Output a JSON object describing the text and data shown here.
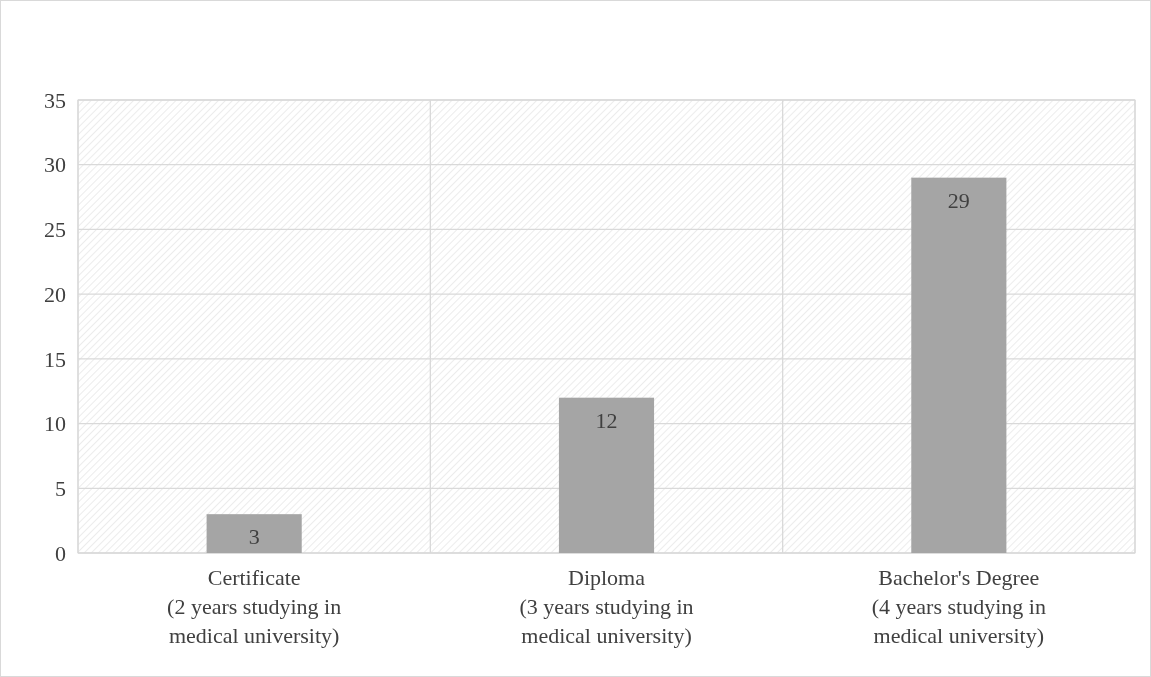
{
  "chart_data": {
    "type": "bar",
    "categories": [
      "Certificate (2 years studying in medical university)",
      "Diploma (3 years studying in medical university)",
      "Bachelor's Degree (4 years studying in medical university)"
    ],
    "values": [
      3,
      12,
      29
    ],
    "color": "#a5a5a5",
    "ylim": [
      0,
      35
    ],
    "yticks": [
      0,
      5,
      10,
      15,
      20,
      25,
      30,
      35
    ],
    "grid": true,
    "data_labels": true
  }
}
